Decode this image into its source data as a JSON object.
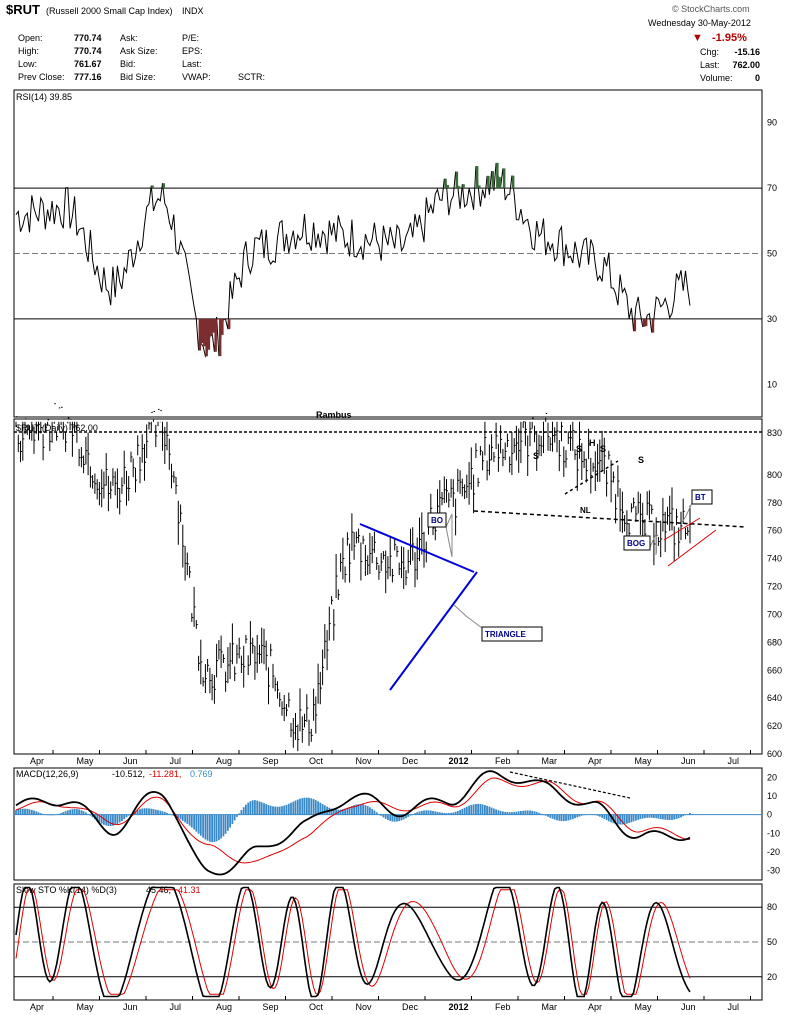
{
  "header": {
    "symbol": "$RUT",
    "name": "(Russell 2000 Small Cap Index)",
    "exchange": "INDX",
    "watermark": "© StockCharts.com",
    "date": "Wednesday 30-May-2012",
    "change_pct": "-1.95%",
    "change_arrow": "▼",
    "stats_left": [
      {
        "label": "Open:",
        "value": "770.74"
      },
      {
        "label": "High:",
        "value": "770.74"
      },
      {
        "label": "Low:",
        "value": "761.67"
      },
      {
        "label": "Prev Close:",
        "value": "777.16"
      }
    ],
    "stats_mid": [
      "Ask:",
      "Ask Size:",
      "Bid:",
      "Bid Size:"
    ],
    "stats_mid2": [
      "P/E:",
      "EPS:",
      "Last:",
      "VWAP:"
    ],
    "sctr": "SCTR:",
    "stats_right": [
      {
        "label": "Chg:",
        "value": "-15.16"
      },
      {
        "label": "Last:",
        "value": "762.00"
      },
      {
        "label": "Volume:",
        "value": "0"
      }
    ]
  },
  "rsi": {
    "legend": "RSI(14) 39.85",
    "ticks": [
      90,
      70,
      50,
      30,
      10
    ],
    "overbought": 70,
    "oversold": 30,
    "mid": 50
  },
  "price": {
    "legend": "$RUT (Daily) 762.00",
    "author": "Rambus",
    "ticks": [
      800,
      780,
      760,
      740,
      720,
      700,
      680,
      660,
      640,
      620,
      600
    ],
    "y_ticks_labels": [
      "800",
      "780",
      "760",
      "740",
      "720",
      "700",
      "680",
      "660",
      "640",
      "620",
      "600"
    ],
    "top_value": 830,
    "annotations": {
      "bo": "BO",
      "triangle": "TRIANGLE",
      "nl": "NL",
      "s1": "S",
      "s2": "S",
      "h": "H",
      "s3": "S",
      "s4": "S",
      "bog": "BOG",
      "bt": "BT"
    }
  },
  "macd": {
    "legend_a": "MACD(12,26,9)",
    "legend_b": "-10.512,",
    "legend_c": "-11.281,",
    "legend_d": "0.769",
    "ticks": [
      20,
      10,
      0,
      -10,
      -20,
      -30
    ]
  },
  "sto": {
    "legend_a": "Slow STO %K(14) %D(3)",
    "legend_b": "45.46,",
    "legend_c": "41.31",
    "ticks": [
      80,
      50,
      20
    ]
  },
  "xaxis": {
    "months": [
      "Apr",
      "May",
      "Jun",
      "Jul",
      "Aug",
      "Sep",
      "Oct",
      "Nov",
      "Dec",
      "2012",
      "Feb",
      "Mar",
      "Apr",
      "May",
      "Jun",
      "Jul"
    ]
  },
  "chart_data": [
    {
      "type": "line",
      "name": "RSI(14)",
      "title": "RSI(14) 39.85",
      "x": [
        "Apr-2011",
        "May-2011",
        "Jun-2011",
        "Jul-2011",
        "Aug-2011",
        "Sep-2011",
        "Oct-2011",
        "Nov-2011",
        "Dec-2011",
        "Jan-2012",
        "Feb-2012",
        "Mar-2012",
        "Apr-2012",
        "May-2012",
        "30-May-2012"
      ],
      "values": [
        62,
        64,
        40,
        67,
        22,
        52,
        58,
        55,
        52,
        68,
        72,
        55,
        48,
        30,
        39.85
      ],
      "ylim": [
        0,
        100
      ],
      "reference_lines": [
        70,
        50,
        30
      ]
    },
    {
      "type": "line",
      "name": "$RUT (Daily)",
      "title": "$RUT (Daily) 762.00",
      "x": [
        "Apr-2011",
        "May-2011",
        "Jun-2011",
        "Jul-2011",
        "Aug-2011",
        "Sep-2011",
        "Oct-2011",
        "Nov-2011",
        "Dec-2011",
        "Jan-2012",
        "Feb-2012",
        "Mar-2012",
        "Apr-2012",
        "May-2012",
        "30-May-2012"
      ],
      "values": [
        830,
        838,
        790,
        835,
        660,
        670,
        620,
        750,
        735,
        780,
        820,
        830,
        810,
        765,
        762
      ],
      "ylim": [
        600,
        840
      ]
    },
    {
      "type": "line",
      "name": "MACD(12,26,9)",
      "x": [
        "Apr-2011",
        "May-2011",
        "Jun-2011",
        "Jul-2011",
        "Aug-2011",
        "Sep-2011",
        "Oct-2011",
        "Nov-2011",
        "Dec-2011",
        "Jan-2012",
        "Feb-2012",
        "Mar-2012",
        "Apr-2012",
        "May-2012",
        "30-May-2012"
      ],
      "values": [
        5,
        8,
        -8,
        12,
        -32,
        -20,
        -5,
        10,
        2,
        8,
        22,
        15,
        4,
        -12,
        -10.512
      ],
      "signal": [
        4,
        6,
        -4,
        8,
        -18,
        -26,
        -12,
        6,
        4,
        5,
        18,
        16,
        6,
        -8,
        -11.281
      ],
      "histogram": [
        1,
        2,
        -4,
        4,
        -14,
        6,
        7,
        4,
        -2,
        3,
        4,
        -1,
        -2,
        -4,
        0.769
      ],
      "ylim": [
        -35,
        25
      ]
    },
    {
      "type": "line",
      "name": "Slow STO %K(14) %D(3)",
      "x": [
        "Apr-2011",
        "May-2011",
        "Jun-2011",
        "Jul-2011",
        "Aug-2011",
        "Sep-2011",
        "Oct-2011",
        "Nov-2011",
        "Dec-2011",
        "Jan-2012",
        "Feb-2012",
        "Mar-2012",
        "Apr-2012",
        "May-2012",
        "30-May-2012"
      ],
      "values": [
        70,
        90,
        15,
        95,
        5,
        80,
        20,
        95,
        10,
        90,
        95,
        70,
        15,
        5,
        45.46
      ],
      "signal": [
        65,
        85,
        20,
        90,
        10,
        70,
        30,
        90,
        15,
        85,
        90,
        75,
        25,
        10,
        41.31
      ],
      "ylim": [
        0,
        100
      ],
      "reference_lines": [
        80,
        50,
        20
      ]
    }
  ]
}
